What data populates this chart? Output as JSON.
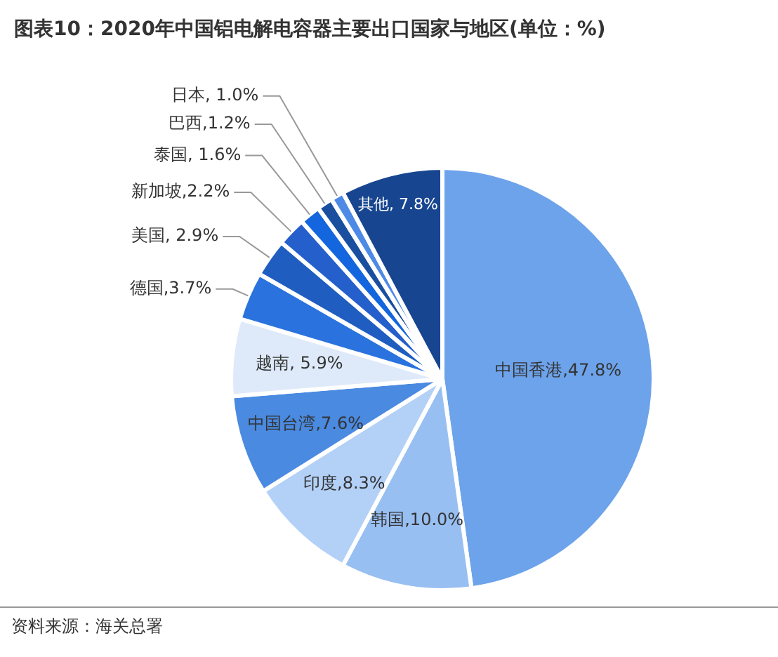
{
  "chart_data": {
    "type": "pie",
    "title": "图表10：2020年中国铝电解电容器主要出口国家与地区(单位：%)",
    "categories": [
      "中国香港",
      "韩国",
      "印度",
      "中国台湾",
      "越南",
      "德国",
      "美国",
      "新加坡",
      "泰国",
      "巴西",
      "日本",
      "其他"
    ],
    "values": [
      47.8,
      10.0,
      8.3,
      7.6,
      5.9,
      3.7,
      2.9,
      2.2,
      1.6,
      1.2,
      1.0,
      7.8
    ],
    "colors": [
      "#6da3ea",
      "#98bff2",
      "#b3d1f7",
      "#4a8ae0",
      "#deeaf9",
      "#2a73de",
      "#1f5ec0",
      "#245fcc",
      "#1366dd",
      "#1a4fa0",
      "#4d8ae6",
      "#174590"
    ],
    "value_labels": [
      ",47.8%",
      ",10.0%",
      ",8.3%",
      ",7.6%",
      ", 5.9%",
      ",3.7%",
      ", 2.9%",
      ",2.2%",
      ", 1.6%",
      ",1.2%",
      ", 1.0%",
      ", 7.8%"
    ],
    "annotations": [
      "资料来源：海关总署"
    ]
  }
}
